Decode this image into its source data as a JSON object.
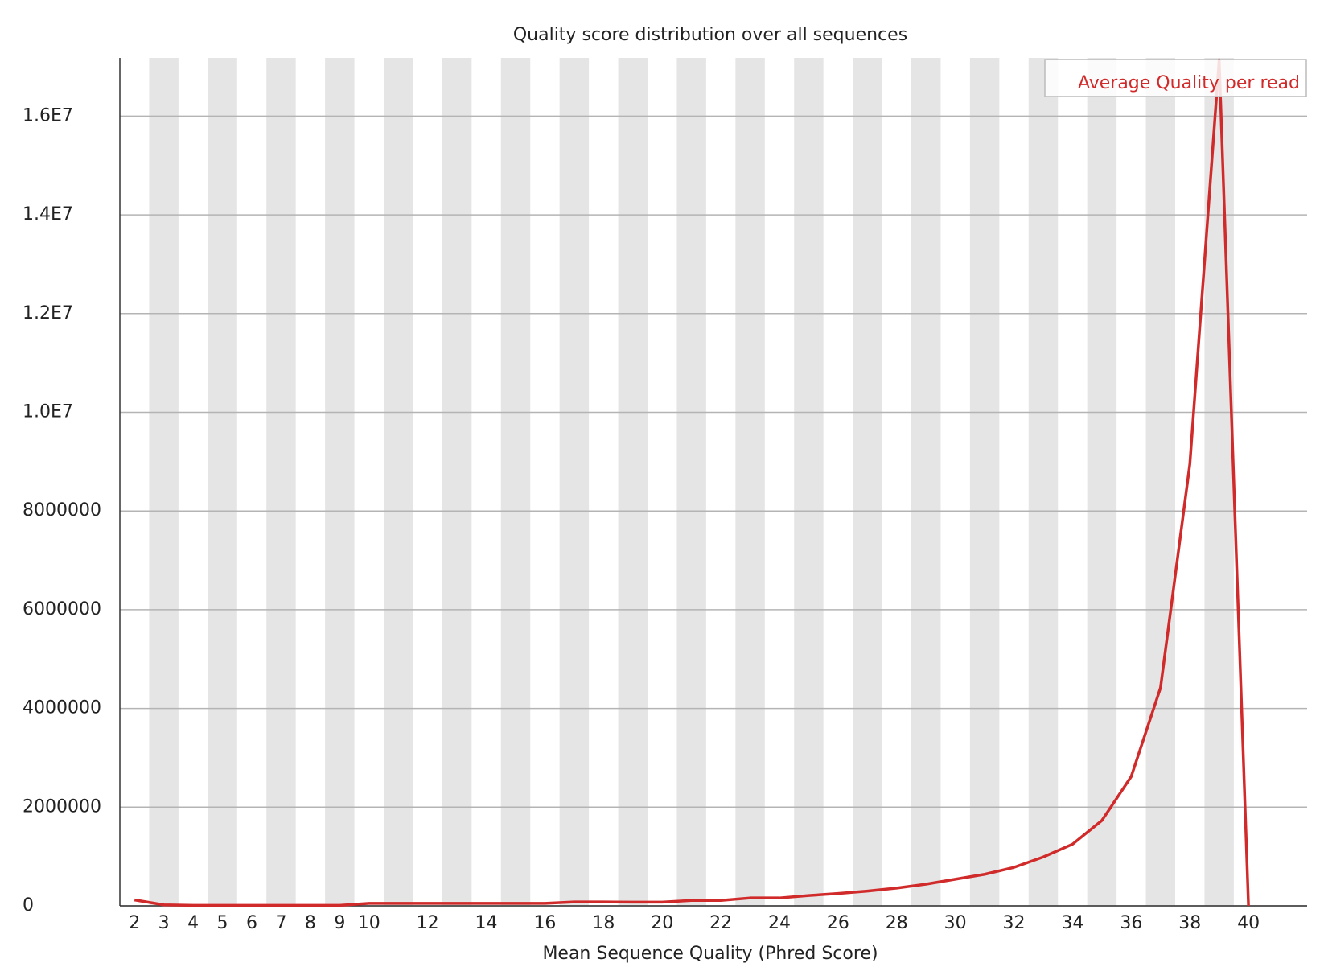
{
  "chart_data": {
    "type": "line",
    "title": "Quality score distribution over all sequences",
    "x_label": "Mean Sequence Quality (Phred Score)",
    "categories": [
      "2",
      "3",
      "4",
      "5",
      "6",
      "7",
      "8",
      "9",
      "10",
      null,
      "12",
      null,
      "14",
      null,
      "16",
      null,
      "18",
      null,
      "20",
      null,
      "22",
      null,
      "24",
      null,
      "26",
      null,
      "28",
      null,
      "30",
      null,
      "32",
      null,
      "34",
      null,
      "36",
      null,
      "38",
      null,
      "40"
    ],
    "series": [
      {
        "name": "Average Quality per read",
        "color": "#d12a2a",
        "values": [
          120000,
          20000,
          10000,
          10000,
          10000,
          10000,
          10000,
          10000,
          50000,
          50000,
          50000,
          50000,
          50000,
          50000,
          50000,
          80000,
          80000,
          75000,
          75000,
          110000,
          110000,
          160000,
          160000,
          210000,
          250000,
          300000,
          360000,
          440000,
          540000,
          640000,
          780000,
          990000,
          1250000,
          1730000,
          2620000,
          4420000,
          8950000,
          17140000,
          0
        ]
      }
    ],
    "ylim": [
      0,
      17180000
    ],
    "yticks": [
      0,
      2000000,
      4000000,
      6000000,
      8000000,
      {
        "value": 10000000,
        "label": "1.0E7"
      },
      {
        "value": 12000000,
        "label": "1.2E7"
      },
      {
        "value": 14000000,
        "label": "1.4E7"
      },
      {
        "value": 16000000,
        "label": "1.6E7"
      }
    ],
    "grid": true,
    "stripes": true,
    "legend": "top-right"
  }
}
